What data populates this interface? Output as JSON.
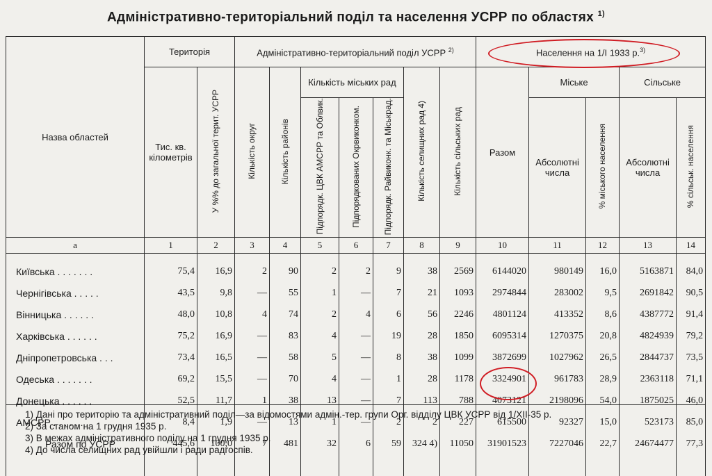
{
  "title": "Адміністративно-територіальний поділ та населення УСРР по областях",
  "title_note": "1)",
  "headers": {
    "name": "Назва областей",
    "territory": "Територія",
    "admin": "Адміністративно-територіальний поділ УСРР",
    "admin_note": "2)",
    "population": "Населення на 1/I 1933 р.",
    "population_note": "3)",
    "area": "Тис. кв. кілометрів",
    "area_pct": "У %% до загальної терит. УСРР",
    "okrugs": "Кількість округ",
    "raions": "Кількість районів",
    "city_councils": "Кількість міських рад",
    "cc_cvk": "Підпорядк. ЦВК АМСРР та Облвик.",
    "cc_okr": "Підпорядкованих Окрвиконком.",
    "cc_raion": "Підпорядк. Райвиконк. та Міськрад.",
    "settlement": "Кількість селищних рад 4)",
    "village": "Кількість сільських рад",
    "total": "Разом",
    "urban": "Міське",
    "rural": "Сільське",
    "abs": "Абсолютні числа",
    "urban_pct": "% міського населення",
    "rural_pct": "% сільськ. населення"
  },
  "col_numbers": [
    "а",
    "1",
    "2",
    "3",
    "4",
    "5",
    "6",
    "7",
    "8",
    "9",
    "10",
    "11",
    "12",
    "13",
    "14"
  ],
  "rows": [
    {
      "name": "Київська  . . . . . . .",
      "c": [
        "75,4",
        "16,9",
        "2",
        "90",
        "2",
        "2",
        "9",
        "38",
        "2569",
        "6144020",
        "980149",
        "16,0",
        "5163871",
        "84,0"
      ]
    },
    {
      "name": "Чернігівська  . . . . .",
      "c": [
        "43,5",
        "9,8",
        "—",
        "55",
        "1",
        "—",
        "7",
        "21",
        "1093",
        "2974844",
        "283002",
        "9,5",
        "2691842",
        "90,5"
      ]
    },
    {
      "name": "Вінницька  . . . . . .",
      "c": [
        "48,0",
        "10,8",
        "4",
        "74",
        "2",
        "4",
        "6",
        "56",
        "2246",
        "4801124",
        "413352",
        "8,6",
        "4387772",
        "91,4"
      ]
    },
    {
      "name": "Харківська  . . . . . .",
      "c": [
        "75,2",
        "16,9",
        "—",
        "83",
        "4",
        "—",
        "19",
        "28",
        "1850",
        "6095314",
        "1270375",
        "20,8",
        "4824939",
        "79,2"
      ]
    },
    {
      "name": "Дніпропетровська  . . .",
      "c": [
        "73,4",
        "16,5",
        "—",
        "58",
        "5",
        "—",
        "8",
        "38",
        "1099",
        "3872699",
        "1027962",
        "26,5",
        "2844737",
        "73,5"
      ]
    },
    {
      "name": "Одеська  . . . . . . .",
      "c": [
        "69,2",
        "15,5",
        "—",
        "70",
        "4",
        "—",
        "1",
        "28",
        "1178",
        "3324901",
        "961783",
        "28,9",
        "2363118",
        "71,1"
      ]
    },
    {
      "name": "Донецька  . . . . . .",
      "c": [
        "52,5",
        "11,7",
        "1",
        "38",
        "13",
        "—",
        "7",
        "113",
        "788",
        "4073121",
        "2198096",
        "54,0",
        "1875025",
        "46,0"
      ]
    },
    {
      "name": "АМСРР  . . . . . . .",
      "c": [
        "8,4",
        "1,9",
        "—",
        "13",
        "1",
        "—",
        "2",
        "2",
        "227",
        "615500",
        "92327",
        "15,0",
        "523173",
        "85,0"
      ]
    },
    {
      "name": "Разом по УСРР",
      "c": [
        "445,6",
        "100,0",
        "7",
        "481",
        "32",
        "6",
        "59",
        "324 4)",
        "11050",
        "31901523",
        "7227046",
        "22,7",
        "24674477",
        "77,3"
      ]
    }
  ],
  "notes": [
    "1) Дані про територію та адміністративний поділ—за відомостями адмін.-тер. групи Орг. відділу ЦВК УСРР від 1/XII-35 р.",
    "2) За станом на 1 грудня 1935 р.",
    "3) В межах адміністративного поділу на 1 грудня 1935 р.",
    "4) До числа селищних рад увійшли і ради радгоспів."
  ],
  "colors": {
    "highlight": "#d01c23",
    "paper": "#f1f0ec",
    "ink": "#1b1b1b"
  }
}
